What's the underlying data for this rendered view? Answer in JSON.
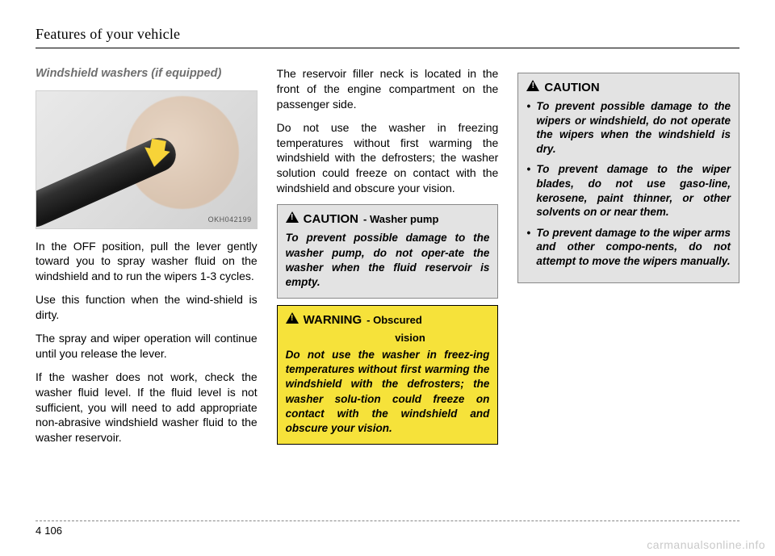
{
  "running_head": "Features of your vehicle",
  "section_number": "4",
  "page_number": "106",
  "watermark": "carmanualsonline.info",
  "col1": {
    "subhead": "Windshield washers (if equipped)",
    "figure_label": "OKH042199",
    "p1": "In the OFF position, pull the lever gently toward you to spray washer fluid on the windshield and to run the wipers 1-3 cycles.",
    "p2": "Use this function when the wind-shield is dirty.",
    "p3": "The spray and wiper operation will continue until you release the lever.",
    "p4": "If the washer does not work, check the washer fluid level. If the fluid level is not sufficient, you will need to add appropriate non-abrasive windshield washer fluid to the washer reservoir."
  },
  "col2": {
    "p1": "The reservoir filler neck is located in the front of the engine compartment on the passenger side.",
    "p2": "Do not use the washer in freezing temperatures without first warming the windshield with the defrosters; the washer solution could freeze on contact with the windshield and obscure your vision.",
    "caution": {
      "title": "CAUTION",
      "sub": "- Washer pump",
      "body": "To prevent possible damage to the washer pump, do not oper-ate the washer when the fluid reservoir is empty."
    },
    "warning": {
      "title": "WARNING",
      "sub": "- Obscured",
      "sub2": "vision",
      "body": "Do not use the washer in freez-ing temperatures without first warming the windshield with the defrosters; the washer solu-tion could freeze on contact with the windshield and obscure your vision."
    }
  },
  "col3": {
    "caution": {
      "title": "CAUTION",
      "items": [
        "To prevent possible damage to the wipers or windshield, do not operate the wipers when the windshield is dry.",
        "To prevent damage to the wiper blades, do not use gaso-line, kerosene, paint thinner, or other solvents on or near them.",
        "To prevent damage to the wiper arms and other compo-nents, do not attempt to move the wipers manually."
      ]
    }
  }
}
